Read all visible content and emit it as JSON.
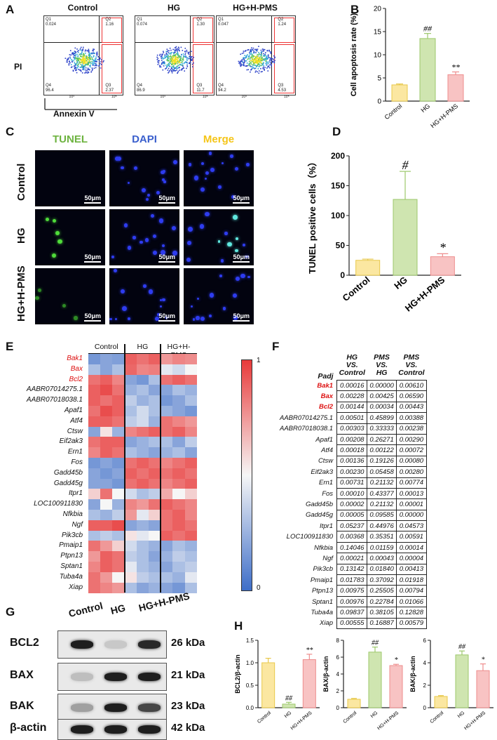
{
  "panels": {
    "A": "A",
    "B": "B",
    "C": "C",
    "D": "D",
    "E": "E",
    "F": "F",
    "G": "G",
    "H": "H"
  },
  "flow": {
    "ylabel": "PI",
    "xlabel": "Annexin V",
    "tick_lo": "10³",
    "tick_hi": "10⁵",
    "plots": [
      {
        "title": "Control",
        "Q1": "Q1\n0.024",
        "Q2": "Q2\n1.16",
        "Q3": "Q3\n2.37",
        "Q4": "Q4\n96.4"
      },
      {
        "title": "HG",
        "Q1": "Q1\n0.074",
        "Q2": "Q2\n1.30",
        "Q3": "Q3\n11.7",
        "Q4": "Q4\n86.9"
      },
      {
        "title": "HG+H-PMS",
        "Q1": "Q1\n0.047",
        "Q2": "Q2\n1.24",
        "Q3": "Q3\n4.53",
        "Q4": "Q4\n94.2"
      }
    ]
  },
  "chart_data": [
    {
      "id": "B",
      "type": "bar",
      "categories": [
        "Control",
        "HG",
        "HG+H-PMS"
      ],
      "values": [
        3.5,
        13.5,
        5.7
      ],
      "errors": [
        0.2,
        1.1,
        0.6
      ],
      "ylabel": "Cell apoptosis rate (%)",
      "ylim": [
        0,
        20
      ],
      "yticks": [
        0,
        5,
        10,
        15,
        20
      ],
      "annotations": [
        "",
        "##",
        "**"
      ],
      "colors": [
        "#fbe7a1",
        "#cfe5b0",
        "#f8c3c3"
      ],
      "edges": [
        "#e8c84a",
        "#9cc86b",
        "#ee8d8d"
      ]
    },
    {
      "id": "D",
      "type": "bar",
      "categories": [
        "Control",
        "HG",
        "HG+H-PMS"
      ],
      "values": [
        25,
        127,
        31
      ],
      "errors": [
        2,
        47,
        5
      ],
      "ylabel": "TUNEL positive cells（%）",
      "ylim": [
        0,
        200
      ],
      "yticks": [
        0,
        50,
        100,
        150,
        200
      ],
      "annotations": [
        "",
        "#",
        "*"
      ],
      "colors": [
        "#fbe7a1",
        "#cfe5b0",
        "#f8c3c3"
      ],
      "edges": [
        "#e8c84a",
        "#9cc86b",
        "#ee8d8d"
      ]
    },
    {
      "id": "H1",
      "type": "bar",
      "categories": [
        "Control",
        "HG",
        "HG+H-PMS"
      ],
      "values": [
        1.0,
        0.08,
        1.07
      ],
      "errors": [
        0.1,
        0.04,
        0.12
      ],
      "ylabel": "BCL2/β-actin",
      "ylim": [
        0,
        1.5
      ],
      "yticks": [
        0,
        0.5,
        1.0,
        1.5
      ],
      "ytick_labels": [
        "0.0",
        "0.5",
        "1.0",
        "1.5"
      ],
      "annotations": [
        "",
        "##",
        "**"
      ],
      "colors": [
        "#fbe7a1",
        "#cfe5b0",
        "#f8c3c3"
      ],
      "edges": [
        "#e8c84a",
        "#9cc86b",
        "#ee8d8d"
      ]
    },
    {
      "id": "H2",
      "type": "bar",
      "categories": [
        "Control",
        "HG",
        "HG+H-PMS"
      ],
      "values": [
        1.0,
        6.6,
        5.0
      ],
      "errors": [
        0.1,
        0.6,
        0.15
      ],
      "ylabel": "BAX/β-actin",
      "ylim": [
        0,
        8
      ],
      "yticks": [
        0,
        2,
        4,
        6,
        8
      ],
      "annotations": [
        "",
        "##",
        "*"
      ],
      "colors": [
        "#fbe7a1",
        "#cfe5b0",
        "#f8c3c3"
      ],
      "edges": [
        "#e8c84a",
        "#9cc86b",
        "#ee8d8d"
      ]
    },
    {
      "id": "H3",
      "type": "bar",
      "categories": [
        "Control",
        "HG",
        "HG+H-PMS"
      ],
      "values": [
        1.0,
        4.7,
        3.3
      ],
      "errors": [
        0.08,
        0.35,
        0.6
      ],
      "ylabel": "BAK/β-actin",
      "ylim": [
        0,
        6
      ],
      "yticks": [
        0,
        2,
        4,
        6
      ],
      "annotations": [
        "",
        "##",
        "*"
      ],
      "colors": [
        "#fbe7a1",
        "#cfe5b0",
        "#f8c3c3"
      ],
      "edges": [
        "#e8c84a",
        "#9cc86b",
        "#ee8d8d"
      ]
    },
    {
      "id": "E",
      "type": "heatmap",
      "groups": [
        "Control",
        "HG",
        "HG+H-PMS"
      ],
      "colorbar": {
        "max": "1",
        "min": "0"
      },
      "genes": [
        "Bak1",
        "Bax",
        "Bcl2",
        "AABR07014275.1",
        "AABR07018038.1",
        "Apaf1",
        "Atf4",
        "Ctsw",
        "Eif2ak3",
        "Ern1",
        "Fos",
        "Gadd45b",
        "Gadd45g",
        "Itpr1",
        "LOC100911830",
        "Nfkbia",
        "Ngf",
        "Pik3cb",
        "Pmaip1",
        "Ptpn13",
        "Sptan1",
        "Tuba4a",
        "Xiap"
      ],
      "highlight": [
        "Bak1",
        "Bax",
        "Bcl2"
      ],
      "values": [
        [
          0.15,
          0.2,
          0.18,
          0.9,
          0.85,
          0.9,
          0.75,
          0.8,
          0.78
        ],
        [
          0.3,
          0.2,
          0.3,
          0.88,
          0.8,
          0.82,
          0.45,
          0.4,
          0.5
        ],
        [
          0.85,
          0.9,
          0.8,
          0.2,
          0.15,
          0.3,
          0.85,
          0.9,
          0.85
        ],
        [
          0.9,
          0.95,
          0.85,
          0.25,
          0.3,
          0.2,
          0.2,
          0.3,
          0.25
        ],
        [
          0.9,
          0.85,
          0.9,
          0.35,
          0.25,
          0.3,
          0.15,
          0.2,
          0.3
        ],
        [
          0.85,
          0.95,
          0.9,
          0.3,
          0.4,
          0.3,
          0.25,
          0.2,
          0.15
        ],
        [
          0.9,
          0.9,
          0.85,
          0.35,
          0.4,
          0.25,
          0.85,
          0.8,
          0.75
        ],
        [
          0.2,
          0.55,
          0.25,
          0.8,
          0.85,
          0.9,
          0.85,
          0.9,
          0.8
        ],
        [
          0.85,
          0.9,
          0.9,
          0.2,
          0.25,
          0.3,
          0.3,
          0.2,
          0.35
        ],
        [
          0.8,
          0.9,
          0.85,
          0.3,
          0.25,
          0.2,
          0.25,
          0.3,
          0.2
        ],
        [
          0.15,
          0.2,
          0.15,
          0.85,
          0.9,
          0.85,
          0.8,
          0.85,
          0.9
        ],
        [
          0.2,
          0.15,
          0.2,
          0.9,
          0.85,
          0.9,
          0.85,
          0.9,
          0.85
        ],
        [
          0.2,
          0.2,
          0.15,
          0.85,
          0.9,
          0.85,
          0.8,
          0.85,
          0.9
        ],
        [
          0.6,
          0.85,
          0.5,
          0.4,
          0.3,
          0.35,
          0.7,
          0.5,
          0.6
        ],
        [
          0.2,
          0.5,
          0.25,
          0.8,
          0.75,
          0.85,
          0.9,
          0.85,
          0.8
        ],
        [
          0.3,
          0.25,
          0.35,
          0.75,
          0.45,
          0.6,
          0.85,
          0.9,
          0.8
        ],
        [
          0.9,
          0.9,
          0.95,
          0.2,
          0.25,
          0.2,
          0.85,
          0.9,
          0.85
        ],
        [
          0.3,
          0.35,
          0.3,
          0.55,
          0.45,
          0.5,
          0.9,
          0.85,
          0.9
        ],
        [
          0.85,
          0.75,
          0.6,
          0.4,
          0.3,
          0.25,
          0.2,
          0.3,
          0.25
        ],
        [
          0.75,
          0.9,
          0.85,
          0.35,
          0.3,
          0.2,
          0.25,
          0.35,
          0.3
        ],
        [
          0.8,
          0.9,
          0.85,
          0.45,
          0.3,
          0.25,
          0.2,
          0.3,
          0.35
        ],
        [
          0.85,
          0.75,
          0.5,
          0.55,
          0.35,
          0.3,
          0.3,
          0.25,
          0.45
        ],
        [
          0.85,
          0.8,
          0.75,
          0.3,
          0.2,
          0.25,
          0.2,
          0.15,
          0.3
        ]
      ]
    },
    {
      "id": "F",
      "type": "table",
      "columns": [
        "HG\nVS.\nControl",
        "PMS\nVS.\nHG",
        "PMS\nVS.\nControl"
      ],
      "row_header": "Padj",
      "rows": [
        [
          "Bak1",
          "0.00016",
          "0.00000",
          "0.00610"
        ],
        [
          "Bax",
          "0.00228",
          "0.00425",
          "0.06590"
        ],
        [
          "Bcl2",
          "0.00144",
          "0.00034",
          "0.00443"
        ],
        [
          "AABR07014275.1",
          "0.00501",
          "0.45899",
          "0.00388"
        ],
        [
          "AABR07018038.1",
          "0.00303",
          "0.33333",
          "0.00238"
        ],
        [
          "Apaf1",
          "0.00208",
          "0.26271",
          "0.00290"
        ],
        [
          "Atf4",
          "0.00018",
          "0.00122",
          "0.00072"
        ],
        [
          "Ctsw",
          "0.00136",
          "0.19126",
          "0.00080"
        ],
        [
          "Eif2ak3",
          "0.00230",
          "0.05458",
          "0.00280"
        ],
        [
          "Ern1",
          "0.00731",
          "0.21132",
          "0.00774"
        ],
        [
          "Fos",
          "0.00010",
          "0.43377",
          "0.00013"
        ],
        [
          "Gadd45b",
          "0.00002",
          "0.21132",
          "0.00001"
        ],
        [
          "Gadd45g",
          "0.00005",
          "0.09585",
          "0.00000"
        ],
        [
          "Itpr1",
          "0.05237",
          "0.44976",
          "0.04573"
        ],
        [
          "LOC100911830",
          "0.00368",
          "0.35351",
          "0.00591"
        ],
        [
          "Nfkbia",
          "0.14046",
          "0.01159",
          "0.00014"
        ],
        [
          "Ngf",
          "0.00021",
          "0.00043",
          "0.00004"
        ],
        [
          "Pik3cb",
          "0.13142",
          "0.01840",
          "0.00413"
        ],
        [
          "Pmaip1",
          "0.01783",
          "0.37092",
          "0.01918"
        ],
        [
          "Ptpn13",
          "0.00975",
          "0.25505",
          "0.00794"
        ],
        [
          "Sptan1",
          "0.00976",
          "0.22784",
          "0.01066"
        ],
        [
          "Tuba4a",
          "0.09837",
          "0.38105",
          "0.12828"
        ],
        [
          "Xiap",
          "0.00555",
          "0.16887",
          "0.00579"
        ]
      ]
    }
  ],
  "tunel": {
    "cols": [
      "TUNEL",
      "DAPI",
      "Merge"
    ],
    "col_colors": [
      "#6db33f",
      "#3a5fcd",
      "#f5c518"
    ],
    "rows": [
      "Control",
      "HG",
      "HG+H-PMS"
    ],
    "scalebar": "50μm"
  },
  "western": {
    "lanes": [
      "Control",
      "HG",
      "HG+H-PMS"
    ],
    "blots": [
      {
        "name": "BCL2",
        "kda": "26 kDa"
      },
      {
        "name": "BAX",
        "kda": "21 kDa"
      },
      {
        "name": "BAK",
        "kda": "23 kDa"
      },
      {
        "name": "β-actin",
        "kda": "42 kDa"
      }
    ]
  }
}
